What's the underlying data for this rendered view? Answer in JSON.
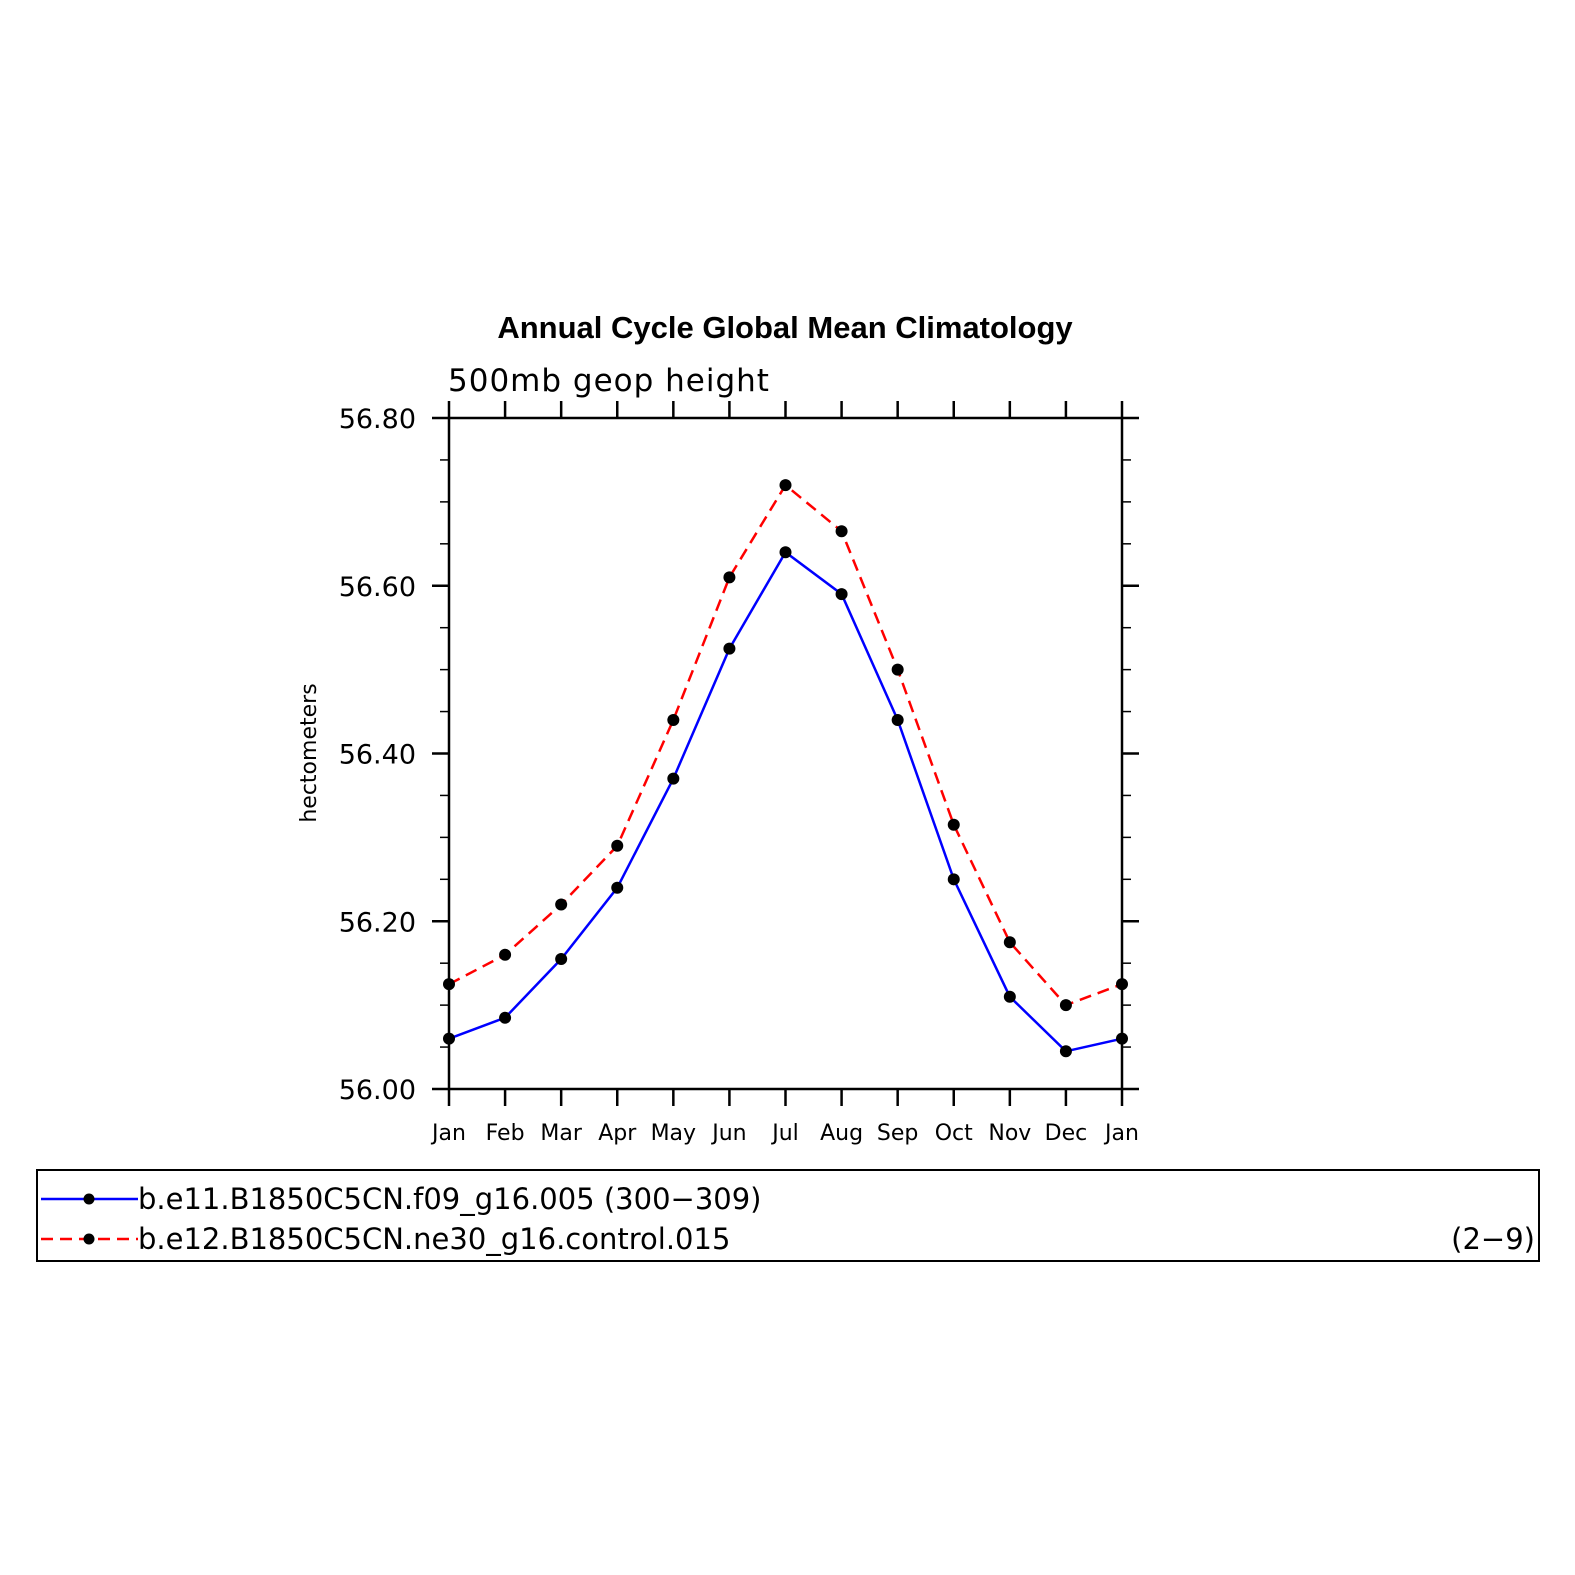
{
  "chart_data": {
    "type": "line",
    "title": "Annual Cycle Global Mean Climatology",
    "subtitle": "500mb geop height",
    "xlabel": "",
    "ylabel": "hectometers",
    "categories": [
      "Jan",
      "Feb",
      "Mar",
      "Apr",
      "May",
      "Jun",
      "Jul",
      "Aug",
      "Sep",
      "Oct",
      "Nov",
      "Dec",
      "Jan"
    ],
    "ylim": [
      56.0,
      56.8
    ],
    "yticks": [
      "56.00",
      "56.20",
      "56.40",
      "56.60",
      "56.80"
    ],
    "ytick_values": [
      56.0,
      56.2,
      56.4,
      56.6,
      56.8
    ],
    "grid": false,
    "legend_position": "bottom",
    "series": [
      {
        "name": "b.e11.B1850C5CN.f09_g16.005 (300−309)",
        "color": "#0000ff",
        "line_style": "solid",
        "values": [
          56.06,
          56.085,
          56.155,
          56.24,
          56.37,
          56.525,
          56.64,
          56.59,
          56.44,
          56.25,
          56.11,
          56.045,
          56.06
        ]
      },
      {
        "name": "b.e12.B1850C5CN.ne30_g16.control.015",
        "color": "#ff0000",
        "line_style": "dashed",
        "values": [
          56.125,
          56.16,
          56.22,
          56.29,
          56.44,
          56.61,
          56.72,
          56.665,
          56.5,
          56.315,
          56.175,
          56.1,
          56.125
        ]
      }
    ],
    "legend_extra": "(2−9)",
    "marker_color": "#000000"
  }
}
